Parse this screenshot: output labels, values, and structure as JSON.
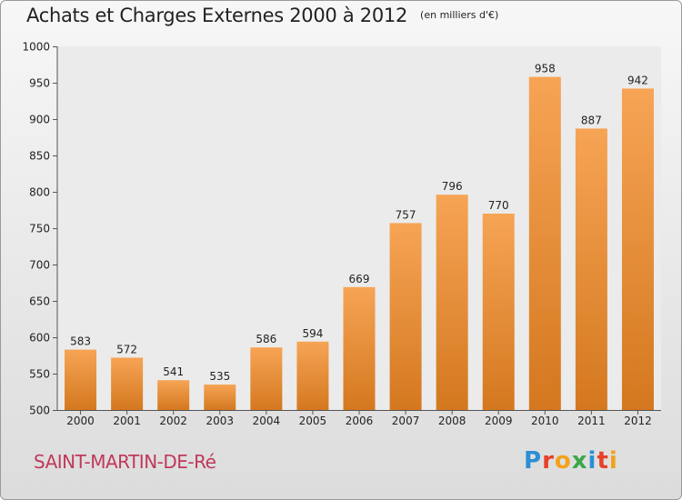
{
  "header": {
    "title": "Achats et Charges Externes 2000 à 2012",
    "unit": "(en milliers d'€)"
  },
  "footer": {
    "town": "SAINT-MARTIN-DE-Ré",
    "brand": "Proxiti",
    "brand_letters": [
      {
        "ch": "P",
        "color": "#2a8fd6"
      },
      {
        "ch": "r",
        "color": "#e8402a"
      },
      {
        "ch": "o",
        "color": "#f2a21b"
      },
      {
        "ch": "x",
        "color": "#3aa84a"
      },
      {
        "ch": "i",
        "color": "#2a8fd6"
      },
      {
        "ch": "t",
        "color": "#e8402a"
      },
      {
        "ch": "i",
        "color": "#f2a21b"
      }
    ]
  },
  "chart_data": {
    "type": "bar",
    "title": "Achats et Charges Externes 2000 à 2012",
    "subtitle": "(en milliers d'€)",
    "xlabel": "",
    "ylabel": "",
    "categories": [
      "2000",
      "2001",
      "2002",
      "2003",
      "2004",
      "2005",
      "2006",
      "2007",
      "2008",
      "2009",
      "2010",
      "2011",
      "2012"
    ],
    "values": [
      583,
      572,
      541,
      535,
      586,
      594,
      669,
      757,
      796,
      770,
      958,
      887,
      942
    ],
    "ylim": [
      500,
      1000
    ],
    "yticks": [
      500,
      550,
      600,
      650,
      700,
      750,
      800,
      850,
      900,
      950,
      1000
    ],
    "data_labels": true,
    "grid": false,
    "colors": {
      "bar_top": "#f6a455",
      "bar_bottom": "#d4781f"
    }
  }
}
